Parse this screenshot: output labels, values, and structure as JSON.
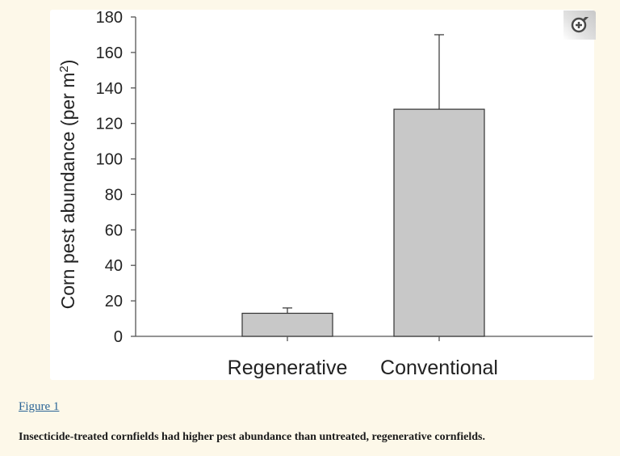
{
  "figure": {
    "link_text": "Figure 1",
    "caption": "Insecticide-treated cornfields had higher pest abundance than untreated, regenerative cornfields.",
    "zoom_icon": "magnifier-plus-icon"
  },
  "chart_data": {
    "type": "bar",
    "categories": [
      "Regenerative",
      "Conventional"
    ],
    "values": [
      13,
      128
    ],
    "error_upper": [
      16,
      170
    ],
    "ylabel": "Corn pest abundance (per m",
    "ylabel_superscript": "2",
    "ylabel_suffix": ")",
    "ylim": [
      0,
      180
    ],
    "yticks": [
      0,
      20,
      40,
      60,
      80,
      100,
      120,
      140,
      160,
      180
    ],
    "bar_color": "#c8c8c8",
    "grid": false
  }
}
